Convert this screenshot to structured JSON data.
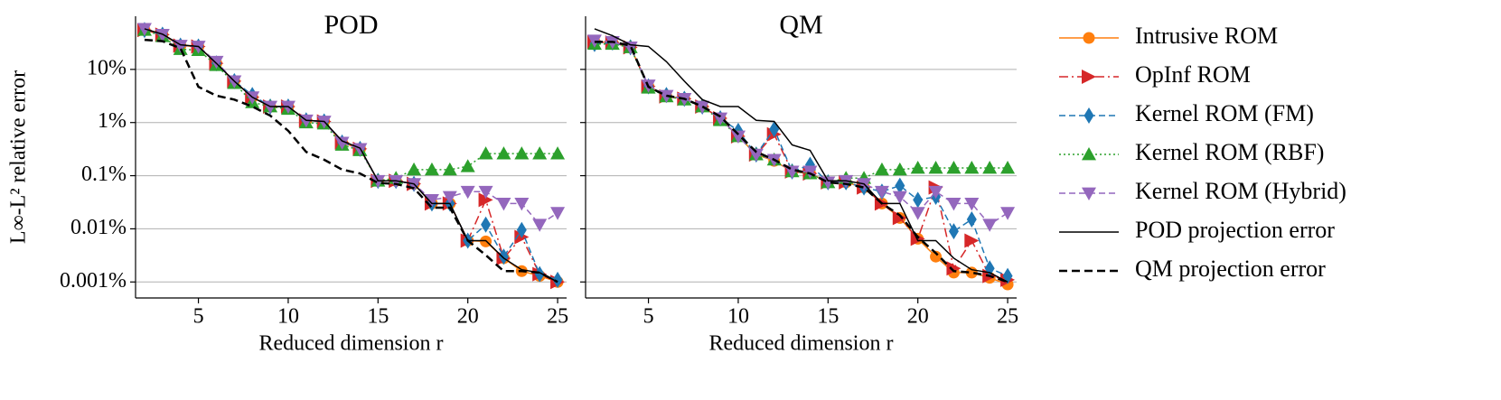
{
  "chart_data": [
    {
      "type": "line",
      "title": "POD",
      "x_label": "Reduced dimension r",
      "y_label": "L∞-L² relative error",
      "x": [
        2,
        3,
        4,
        5,
        6,
        7,
        8,
        9,
        10,
        11,
        12,
        13,
        14,
        15,
        16,
        17,
        18,
        19,
        20,
        21,
        22,
        23,
        24,
        25
      ],
      "xlim": [
        1.5,
        25.5
      ],
      "xticks": [
        5,
        10,
        15,
        20,
        25
      ],
      "ylim": [
        0.0005,
        100
      ],
      "log_y": true,
      "grid": true,
      "yticks": [
        {
          "value": 10,
          "label": "10%"
        },
        {
          "value": 1,
          "label": "1%"
        },
        {
          "value": 0.1,
          "label": "0.1%"
        },
        {
          "value": 0.01,
          "label": "0.01%"
        },
        {
          "value": 0.001,
          "label": "0.001%"
        }
      ],
      "series": [
        {
          "name": "Intrusive ROM",
          "color": "#ff7f0e",
          "line": "solid",
          "marker": "circle",
          "values": [
            55,
            45,
            28,
            27,
            13,
            6,
            3,
            2,
            2,
            1.1,
            1.05,
            0.42,
            0.32,
            0.08,
            0.08,
            0.07,
            0.03,
            0.03,
            0.006,
            0.0058,
            0.0028,
            0.0016,
            0.0013,
            0.001
          ]
        },
        {
          "name": "OpInf ROM",
          "color": "#d62728",
          "line": "dashdot",
          "marker": "triangle-right",
          "values": [
            55,
            45,
            28,
            27,
            13,
            6,
            3,
            2,
            2,
            1.1,
            1.05,
            0.42,
            0.32,
            0.08,
            0.08,
            0.07,
            0.03,
            0.03,
            0.006,
            0.035,
            0.0028,
            0.007,
            0.0014,
            0.001
          ]
        },
        {
          "name": "Kernel ROM (FM)",
          "color": "#1f77b4",
          "line": "dashed",
          "marker": "diamond",
          "values": [
            55,
            45,
            28,
            27,
            13,
            6,
            3.3,
            2,
            2,
            1.1,
            1.05,
            0.42,
            0.32,
            0.08,
            0.08,
            0.07,
            0.03,
            0.03,
            0.006,
            0.012,
            0.003,
            0.0095,
            0.0014,
            0.0011
          ]
        },
        {
          "name": "Kernel ROM (RBF)",
          "color": "#2ca02c",
          "line": "dotted",
          "marker": "triangle-up",
          "values": [
            55,
            42,
            24,
            23,
            12,
            5.5,
            2.4,
            2,
            1.8,
            1,
            0.95,
            0.38,
            0.3,
            0.08,
            0.09,
            0.13,
            0.13,
            0.13,
            0.15,
            0.26,
            0.26,
            0.26,
            0.26,
            0.26
          ]
        },
        {
          "name": "Kernel ROM (Hybrid)",
          "color": "#9467bd",
          "line": "dashed",
          "marker": "triangle-down",
          "values": [
            58,
            45,
            28,
            27,
            14,
            6,
            3,
            2,
            2,
            1.1,
            1.05,
            0.42,
            0.32,
            0.08,
            0.08,
            0.07,
            0.035,
            0.04,
            0.05,
            0.05,
            0.03,
            0.03,
            0.012,
            0.02
          ]
        },
        {
          "name": "POD projection error",
          "color": "#000000",
          "line": "solid",
          "marker": "none",
          "values": [
            58,
            46,
            29,
            27,
            13,
            6,
            3,
            2,
            2,
            1.1,
            1.05,
            0.45,
            0.33,
            0.08,
            0.08,
            0.07,
            0.03,
            0.03,
            0.006,
            0.006,
            0.0028,
            0.0017,
            0.0015,
            0.001
          ]
        },
        {
          "name": "QM projection error",
          "color": "#000000",
          "line": "thickdash",
          "marker": "none",
          "values": [
            36,
            34,
            25,
            4.7,
            3.2,
            2.7,
            2,
            1.35,
            0.7,
            0.28,
            0.2,
            0.13,
            0.11,
            0.073,
            0.07,
            0.058,
            0.025,
            0.025,
            0.006,
            0.0032,
            0.0016,
            0.0016,
            0.0015,
            0.001
          ]
        }
      ]
    },
    {
      "type": "line",
      "title": "QM",
      "x_label": "Reduced dimension r",
      "x": [
        2,
        3,
        4,
        5,
        6,
        7,
        8,
        9,
        10,
        11,
        12,
        13,
        14,
        15,
        16,
        17,
        18,
        19,
        20,
        21,
        22,
        23,
        24,
        25
      ],
      "xlim": [
        1.5,
        25.5
      ],
      "xticks": [
        5,
        10,
        15,
        20,
        25
      ],
      "ylim": [
        0.0005,
        100
      ],
      "log_y": true,
      "grid": true,
      "yticks": [
        10,
        1,
        0.1,
        0.01,
        0.001
      ],
      "series": [
        {
          "color": "#ff7f0e",
          "line": "solid",
          "marker": "circle",
          "values": [
            33,
            32,
            26,
            4.8,
            3.1,
            2.8,
            2,
            1.2,
            0.55,
            0.25,
            0.19,
            0.12,
            0.11,
            0.075,
            0.075,
            0.06,
            0.03,
            0.016,
            0.0065,
            0.003,
            0.0015,
            0.0015,
            0.0012,
            0.0009
          ]
        },
        {
          "color": "#d62728",
          "line": "dashdot",
          "marker": "triangle-right",
          "values": [
            33,
            32,
            26,
            4.8,
            3.1,
            2.8,
            2,
            1.2,
            0.55,
            0.25,
            0.6,
            0.12,
            0.11,
            0.075,
            0.075,
            0.06,
            0.03,
            0.016,
            0.0065,
            0.06,
            0.0018,
            0.006,
            0.0013,
            0.0011
          ]
        },
        {
          "color": "#1f77b4",
          "line": "dashed",
          "marker": "diamond",
          "values": [
            30,
            32,
            26,
            4.8,
            3.3,
            2.8,
            2,
            1.2,
            0.7,
            0.25,
            0.75,
            0.12,
            0.16,
            0.075,
            0.075,
            0.06,
            0.05,
            0.065,
            0.035,
            0.04,
            0.009,
            0.015,
            0.0018,
            0.0013
          ]
        },
        {
          "color": "#2ca02c",
          "line": "dotted",
          "marker": "triangle-up",
          "values": [
            30,
            30,
            26,
            4.5,
            3.1,
            2.7,
            2,
            1.1,
            0.55,
            0.25,
            0.2,
            0.12,
            0.11,
            0.075,
            0.09,
            0.09,
            0.13,
            0.13,
            0.14,
            0.14,
            0.14,
            0.14,
            0.14,
            0.14
          ]
        },
        {
          "color": "#9467bd",
          "line": "dashed",
          "marker": "triangle-down",
          "values": [
            35,
            33,
            26,
            5,
            3.2,
            2.8,
            2,
            1.2,
            0.55,
            0.25,
            0.2,
            0.12,
            0.12,
            0.075,
            0.08,
            0.07,
            0.05,
            0.04,
            0.02,
            0.05,
            0.03,
            0.03,
            0.012,
            0.02
          ]
        },
        {
          "color": "#000000",
          "line": "solid",
          "marker": "none",
          "values": [
            58,
            43,
            29,
            27,
            14,
            6,
            2.7,
            2,
            2,
            1.1,
            1.05,
            0.38,
            0.3,
            0.08,
            0.08,
            0.07,
            0.03,
            0.03,
            0.006,
            0.006,
            0.0028,
            0.0017,
            0.0015,
            0.001
          ]
        },
        {
          "color": "#000000",
          "line": "thickdash",
          "marker": "none",
          "values": [
            33,
            33,
            28,
            4.7,
            3.2,
            2.8,
            2,
            1.3,
            0.6,
            0.28,
            0.2,
            0.13,
            0.11,
            0.075,
            0.07,
            0.06,
            0.03,
            0.018,
            0.007,
            0.0035,
            0.0016,
            0.0015,
            0.0013,
            0.001
          ]
        }
      ]
    }
  ]
}
